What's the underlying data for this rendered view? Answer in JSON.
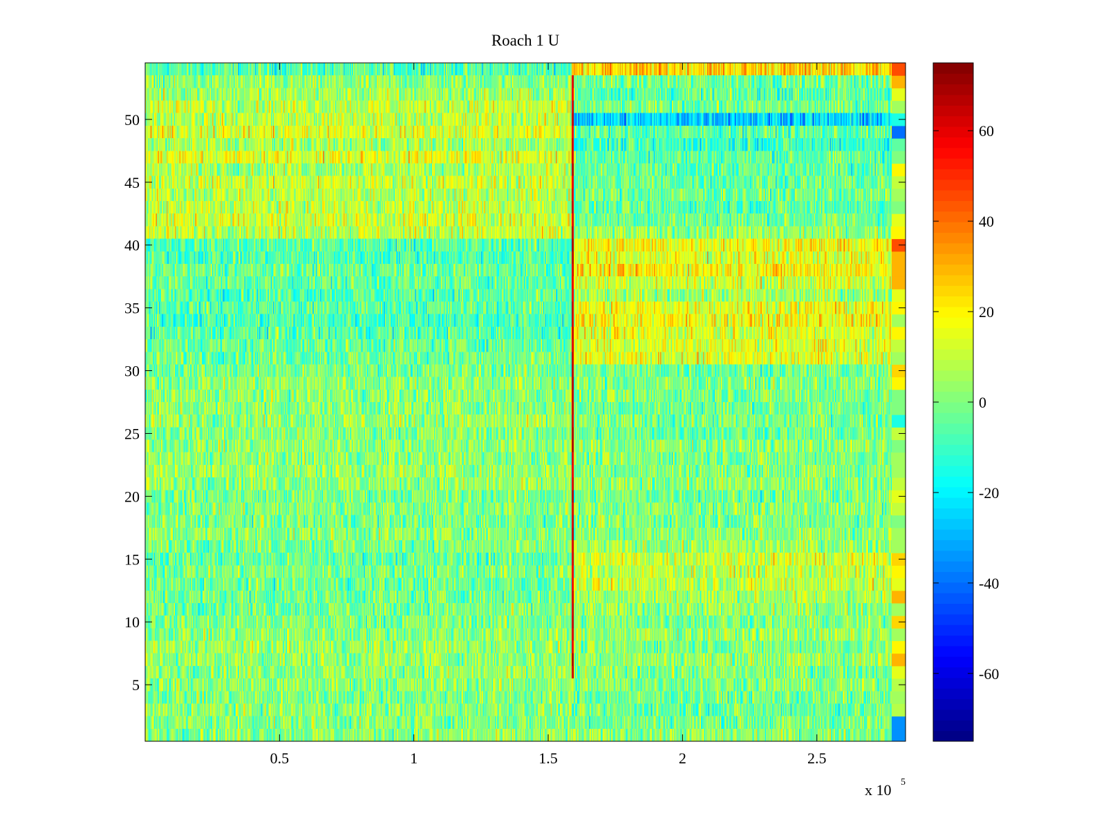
{
  "chart_data": {
    "type": "heatmap",
    "title": "Roach 1 U",
    "xlabel": "",
    "ylabel": "",
    "x_range": [
      0,
      283000
    ],
    "y_range": [
      0.5,
      54.5
    ],
    "rows": 54,
    "x_ticks": [
      {
        "value": 50000,
        "label": "0.5"
      },
      {
        "value": 100000,
        "label": "1"
      },
      {
        "value": 150000,
        "label": "1.5"
      },
      {
        "value": 200000,
        "label": "2"
      },
      {
        "value": 250000,
        "label": "2.5"
      }
    ],
    "x_multiplier": {
      "base": "x 10",
      "exponent": "5"
    },
    "y_ticks": [
      {
        "value": 5,
        "label": "5"
      },
      {
        "value": 10,
        "label": "10"
      },
      {
        "value": 15,
        "label": "15"
      },
      {
        "value": 20,
        "label": "20"
      },
      {
        "value": 25,
        "label": "25"
      },
      {
        "value": 30,
        "label": "30"
      },
      {
        "value": 35,
        "label": "35"
      },
      {
        "value": 40,
        "label": "40"
      },
      {
        "value": 45,
        "label": "45"
      },
      {
        "value": 50,
        "label": "50"
      }
    ],
    "colorbar": {
      "range": [
        -75,
        75
      ],
      "colormap": "jet",
      "ticks": [
        {
          "value": 60,
          "label": "60"
        },
        {
          "value": 40,
          "label": "40"
        },
        {
          "value": 20,
          "label": "20"
        },
        {
          "value": 0,
          "label": "0"
        },
        {
          "value": -20,
          "label": "-20"
        },
        {
          "value": -40,
          "label": "-40"
        },
        {
          "value": -60,
          "label": "-60"
        }
      ]
    },
    "transition_x": 159000,
    "row_means_before": [
      2,
      1,
      2,
      0,
      2,
      3,
      3,
      4,
      2,
      0,
      -1,
      -2,
      -3,
      0,
      -4,
      0,
      2,
      -1,
      1,
      -1,
      3,
      4,
      2,
      3,
      1,
      4,
      2,
      2,
      3,
      -1,
      -2,
      -3,
      -6,
      -8,
      -5,
      -6,
      -4,
      -3,
      -7,
      -6,
      10,
      12,
      9,
      8,
      11,
      6,
      15,
      5,
      14,
      9,
      10,
      5,
      1,
      -7
    ],
    "row_means_after": [
      2,
      -1,
      -3,
      -2,
      1,
      0,
      4,
      0,
      4,
      0,
      3,
      6,
      10,
      9,
      12,
      4,
      2,
      0,
      1,
      -1,
      2,
      1,
      0,
      2,
      -3,
      -1,
      -2,
      0,
      0,
      -2,
      14,
      14,
      14,
      18,
      16,
      4,
      12,
      20,
      14,
      18,
      3,
      -2,
      -5,
      -2,
      -3,
      -5,
      -4,
      -10,
      -5,
      -25,
      -2,
      -5,
      -2,
      25
    ],
    "row_ends": [
      -35,
      -35,
      8,
      5,
      8,
      15,
      30,
      20,
      5,
      25,
      5,
      30,
      15,
      20,
      25,
      5,
      5,
      0,
      10,
      15,
      10,
      5,
      5,
      0,
      10,
      -15,
      0,
      0,
      20,
      25,
      5,
      10,
      20,
      5,
      20,
      15,
      30,
      30,
      30,
      45,
      20,
      15,
      0,
      5,
      10,
      20,
      0,
      -5,
      -40,
      -15,
      5,
      15,
      30,
      45
    ]
  }
}
